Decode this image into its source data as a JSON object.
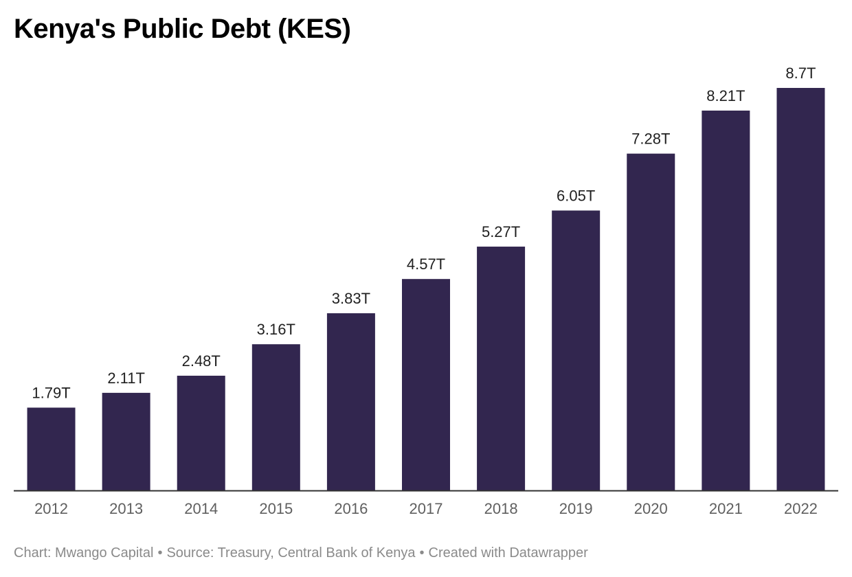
{
  "title": "Kenya's Public Debt (KES)",
  "chart_data": {
    "type": "bar",
    "title": "Kenya's Public Debt (KES)",
    "categories": [
      "2012",
      "2013",
      "2014",
      "2015",
      "2016",
      "2017",
      "2018",
      "2019",
      "2020",
      "2021",
      "2022"
    ],
    "values": [
      1.79,
      2.11,
      2.48,
      3.16,
      3.83,
      4.57,
      5.27,
      6.05,
      7.28,
      8.21,
      8.7
    ],
    "value_labels": [
      "1.79T",
      "2.11T",
      "2.48T",
      "3.16T",
      "3.83T",
      "4.57T",
      "5.27T",
      "6.05T",
      "7.28T",
      "8.21T",
      "8.7T"
    ],
    "unit": "T",
    "xlabel": "",
    "ylabel": "",
    "ylim": [
      0,
      8.7
    ],
    "grid": false,
    "legend": "none",
    "bar_color": "#32264f"
  },
  "footer": {
    "chart_credit": "Chart: Mwango Capital",
    "source": "Source: Treasury, Central Bank of Kenya",
    "tool": "Created with Datawrapper",
    "separator": "•"
  },
  "colors": {
    "bar": "#32264f",
    "axis": "#333333",
    "tick_label": "#5f5f5f",
    "value_label": "#1f1f1f",
    "footer": "#8a8a8a"
  }
}
